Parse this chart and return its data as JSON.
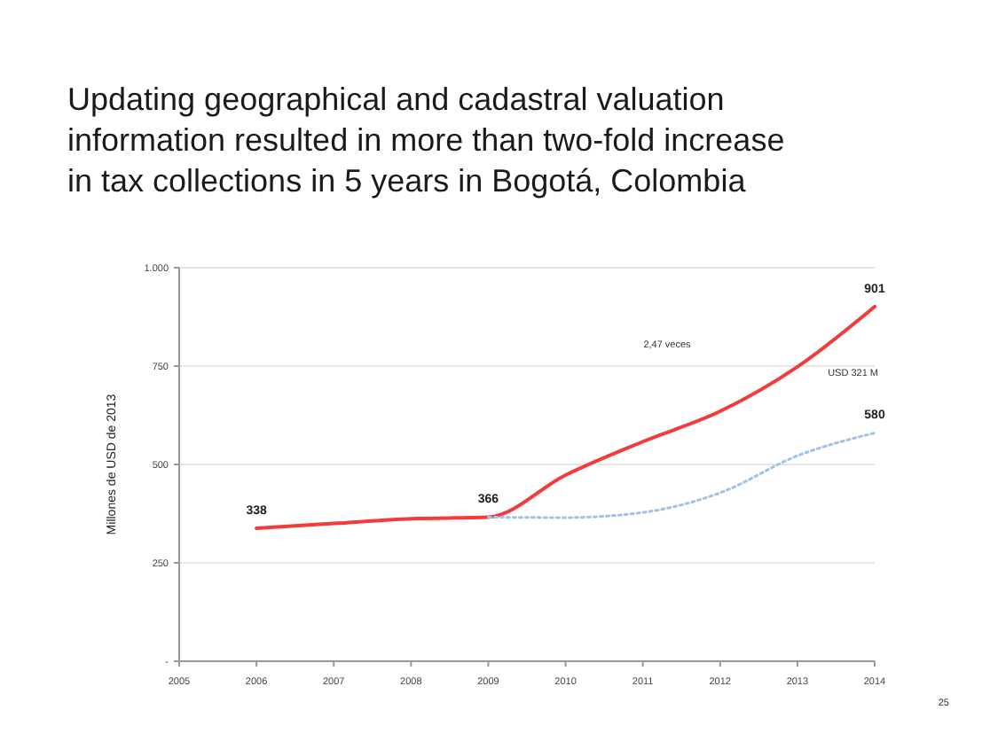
{
  "chart_data": {
    "type": "line",
    "title": "Updating geographical and cadastral valuation information resulted in more than two-fold increase in tax collections in 5 years in Bogotá, Colombia",
    "ylabel": "Millones de USD de 2013",
    "xlim": [
      2005,
      2014
    ],
    "xticks": [
      2005,
      2006,
      2007,
      2008,
      2009,
      2010,
      2011,
      2012,
      2013,
      2014
    ],
    "ylim": [
      0,
      1000
    ],
    "yticks": [
      {
        "value": 0,
        "label": "-"
      },
      250,
      500,
      750,
      {
        "value": 1000,
        "label": "1.000"
      }
    ],
    "grid": "y",
    "marker": "none",
    "series": [
      {
        "color": "#f23b3b",
        "line_style": "solid",
        "x": [
          2006,
          2007,
          2008,
          2009,
          2010,
          2011,
          2012,
          2013,
          2014
        ],
        "values": [
          338,
          350,
          362,
          366,
          473,
          558,
          635,
          748,
          901
        ],
        "value_labels": [
          "338",
          null,
          null,
          "366",
          null,
          null,
          null,
          null,
          "901"
        ]
      },
      {
        "color": "#9fc3e6",
        "line_style": "dotted",
        "x": [
          2009,
          2010,
          2011,
          2012,
          2013,
          2014
        ],
        "values": [
          366,
          365,
          378,
          428,
          522,
          580
        ],
        "value_labels": [
          null,
          null,
          null,
          null,
          null,
          "580"
        ]
      }
    ],
    "annotations": [
      "2,47 veces",
      "USD 321 M",
      "25"
    ]
  }
}
